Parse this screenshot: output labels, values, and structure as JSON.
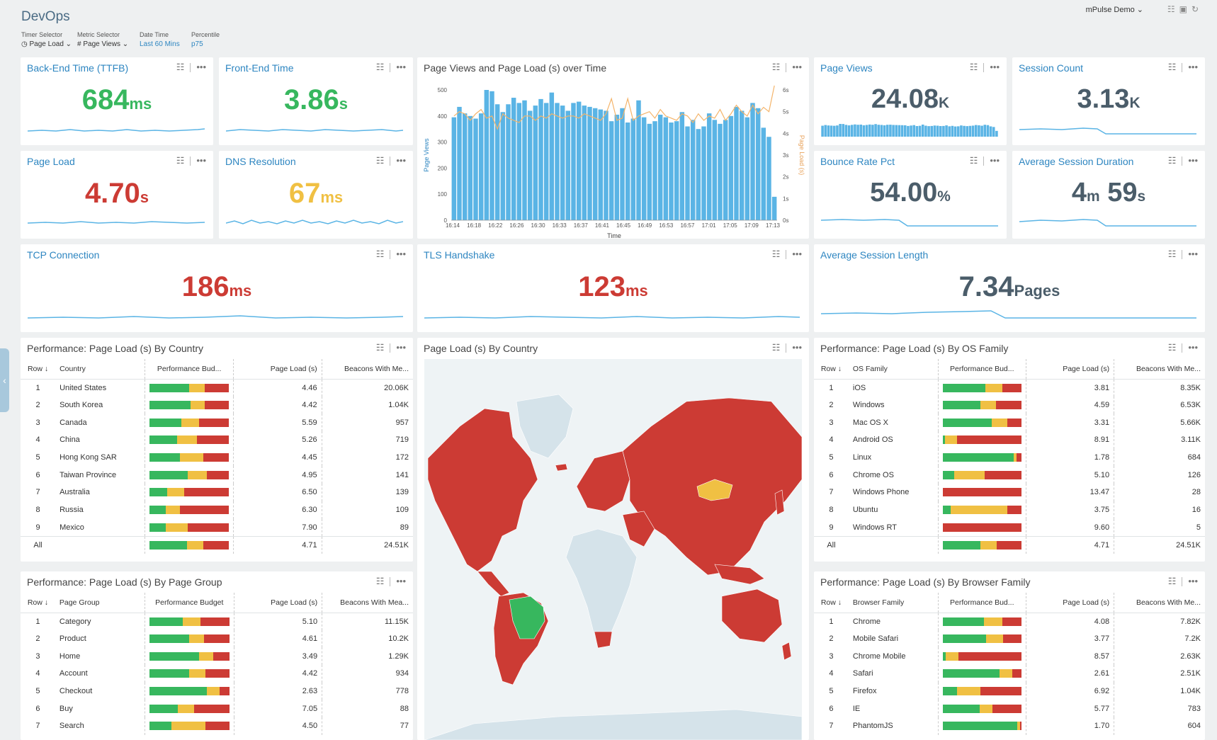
{
  "header": {
    "title": "DevOps",
    "user": "mPulse Demo",
    "filters": [
      {
        "label": "Timer Selector",
        "value": "◷ Page Load ⌄"
      },
      {
        "label": "Metric Selector",
        "value": "# Page Views ⌄"
      },
      {
        "label": "Date Time",
        "value": "Last 60 Mins"
      },
      {
        "label": "Percentile",
        "value": "p75"
      }
    ]
  },
  "colors": {
    "good": "#37b75e",
    "warn": "#f0c043",
    "bad": "#cc3b34",
    "link": "#2e86c1",
    "bar": "#5ab4e5",
    "line": "#f4b46a"
  },
  "icons": {
    "tree": "tree-icon",
    "more": "more-options-icon",
    "save": "save-icon",
    "refresh": "refresh-icon",
    "collapse": "chevron-left-icon"
  },
  "kpis": {
    "ttfb": {
      "title": "Back-End Time (TTFB)",
      "value": "684",
      "unit": "ms"
    },
    "frontend": {
      "title": "Front-End Time",
      "value": "3.86",
      "unit": "s"
    },
    "pageviews": {
      "title": "Page Views",
      "value": "24.08",
      "unit": "K"
    },
    "sessions": {
      "title": "Session Count",
      "value": "3.13",
      "unit": "K"
    },
    "pageload": {
      "title": "Page Load",
      "value": "4.70",
      "unit": "s"
    },
    "dns": {
      "title": "DNS Resolution",
      "value": "67",
      "unit": "ms"
    },
    "bounce": {
      "title": "Bounce Rate Pct",
      "value": "54.00",
      "unit": "%"
    },
    "avgdur": {
      "title": "Average Session Duration",
      "v1": "4",
      "u1": "m",
      "v2": "59",
      "u2": "s"
    },
    "tcp": {
      "title": "TCP Connection",
      "value": "186",
      "unit": "ms"
    },
    "tls": {
      "title": "TLS Handshake",
      "value": "123",
      "unit": "ms"
    },
    "avglen": {
      "title": "Average Session Length",
      "value": "7.34",
      "unit": "Pages"
    }
  },
  "chart_data": {
    "type": "bar",
    "title": "Page Views and Page Load (s) over Time",
    "xlabel": "Time",
    "ylabel": "Page Views",
    "y2label": "Page Load (s)",
    "ylim": [
      0,
      500
    ],
    "y2lim": [
      0,
      6
    ],
    "yticks": [
      0,
      100,
      200,
      300,
      400,
      500
    ],
    "y2ticks": [
      "0s",
      "1s",
      "2s",
      "3s",
      "4s",
      "5s",
      "6s"
    ],
    "xticks": [
      "16:14",
      "16:18",
      "16:22",
      "16:26",
      "16:30",
      "16:33",
      "16:37",
      "16:41",
      "16:45",
      "16:49",
      "16:53",
      "16:57",
      "17:01",
      "17:05",
      "17:09",
      "17:13"
    ],
    "series": [
      {
        "name": "Page Views",
        "type": "bar",
        "values": [
          395,
          435,
          410,
          400,
          390,
          410,
          500,
          495,
          445,
          415,
          445,
          470,
          450,
          460,
          420,
          440,
          465,
          450,
          490,
          450,
          440,
          420,
          450,
          455,
          440,
          435,
          430,
          425,
          420,
          380,
          405,
          430,
          375,
          390,
          460,
          395,
          370,
          380,
          405,
          395,
          375,
          380,
          415,
          360,
          385,
          350,
          360,
          410,
          385,
          370,
          385,
          400,
          435,
          420,
          395,
          450,
          430,
          355,
          320,
          90
        ]
      },
      {
        "name": "Page Load (s)",
        "type": "line",
        "values": [
          4.8,
          5.0,
          4.9,
          4.6,
          4.9,
          5.1,
          4.7,
          4.8,
          4.2,
          4.9,
          4.7,
          4.6,
          4.5,
          4.8,
          4.8,
          4.6,
          4.8,
          4.7,
          4.9,
          4.8,
          4.7,
          4.8,
          4.8,
          4.7,
          4.9,
          4.8,
          4.7,
          4.6,
          4.9,
          5.6,
          4.6,
          4.7,
          5.6,
          4.6,
          4.8,
          4.9,
          5.0,
          4.7,
          5.1,
          4.8,
          4.7,
          4.6,
          4.9,
          4.8,
          4.5,
          4.9,
          4.6,
          4.8,
          4.7,
          5.1,
          4.6,
          4.9,
          5.3,
          5.0,
          4.8,
          5.3,
          4.9,
          5.2,
          5.0,
          6.2
        ]
      }
    ]
  },
  "map": {
    "title": "Page Load (s) By Country"
  },
  "country_table": {
    "title": "Performance: Page Load (s) By Country",
    "headers": [
      "Row ↓",
      "Country",
      "Performance Bud...",
      "Page Load (s)",
      "Beacons With Me..."
    ],
    "rows": [
      {
        "row": "1",
        "name": "United States",
        "b": [
          50,
          20,
          30
        ],
        "load": "4.46",
        "beacons": "20.06K"
      },
      {
        "row": "2",
        "name": "South Korea",
        "b": [
          52,
          18,
          30
        ],
        "load": "4.42",
        "beacons": "1.04K"
      },
      {
        "row": "3",
        "name": "Canada",
        "b": [
          40,
          22,
          38
        ],
        "load": "5.59",
        "beacons": "957"
      },
      {
        "row": "4",
        "name": "China",
        "b": [
          35,
          25,
          40
        ],
        "load": "5.26",
        "beacons": "719"
      },
      {
        "row": "5",
        "name": "Hong Kong SAR",
        "b": [
          38,
          30,
          32
        ],
        "load": "4.45",
        "beacons": "172"
      },
      {
        "row": "6",
        "name": "Taiwan Province",
        "b": [
          48,
          24,
          28
        ],
        "load": "4.95",
        "beacons": "141"
      },
      {
        "row": "7",
        "name": "Australia",
        "b": [
          22,
          22,
          56
        ],
        "load": "6.50",
        "beacons": "139"
      },
      {
        "row": "8",
        "name": "Russia",
        "b": [
          20,
          18,
          62
        ],
        "load": "6.30",
        "beacons": "109"
      },
      {
        "row": "9",
        "name": "Mexico",
        "b": [
          20,
          28,
          52
        ],
        "load": "7.90",
        "beacons": "89"
      }
    ],
    "all": {
      "row": "All",
      "name": "",
      "b": [
        47,
        21,
        32
      ],
      "load": "4.71",
      "beacons": "24.51K"
    }
  },
  "os_table": {
    "title": "Performance: Page Load (s) By OS Family",
    "headers": [
      "Row ↓",
      "OS Family",
      "Performance Bud...",
      "Page Load (s)",
      "Beacons With Me..."
    ],
    "rows": [
      {
        "row": "1",
        "name": "iOS",
        "b": [
          54,
          22,
          24
        ],
        "load": "3.81",
        "beacons": "8.35K"
      },
      {
        "row": "2",
        "name": "Windows",
        "b": [
          48,
          20,
          32
        ],
        "load": "4.59",
        "beacons": "6.53K"
      },
      {
        "row": "3",
        "name": "Mac OS X",
        "b": [
          62,
          20,
          18
        ],
        "load": "3.31",
        "beacons": "5.66K"
      },
      {
        "row": "4",
        "name": "Android OS",
        "b": [
          3,
          15,
          82
        ],
        "load": "8.91",
        "beacons": "3.11K"
      },
      {
        "row": "5",
        "name": "Linux",
        "b": [
          90,
          4,
          6
        ],
        "load": "1.78",
        "beacons": "684"
      },
      {
        "row": "6",
        "name": "Chrome OS",
        "b": [
          15,
          38,
          47
        ],
        "load": "5.10",
        "beacons": "126"
      },
      {
        "row": "7",
        "name": "Windows Phone",
        "b": [
          0,
          0,
          100
        ],
        "load": "13.47",
        "beacons": "28"
      },
      {
        "row": "8",
        "name": "Ubuntu",
        "b": [
          10,
          72,
          18
        ],
        "load": "3.75",
        "beacons": "16"
      },
      {
        "row": "9",
        "name": "Windows RT",
        "b": [
          0,
          0,
          100
        ],
        "load": "9.60",
        "beacons": "5"
      }
    ],
    "all": {
      "row": "All",
      "name": "",
      "b": [
        48,
        21,
        31
      ],
      "load": "4.71",
      "beacons": "24.51K"
    }
  },
  "pagegroup_table": {
    "title": "Performance: Page Load (s) By Page Group",
    "headers": [
      "Row ↓",
      "Page Group",
      "Performance Budget",
      "Page Load (s)",
      "Beacons With Mea..."
    ],
    "rows": [
      {
        "row": "1",
        "name": "Category",
        "b": [
          42,
          22,
          36
        ],
        "load": "5.10",
        "beacons": "11.15K"
      },
      {
        "row": "2",
        "name": "Product",
        "b": [
          50,
          18,
          32
        ],
        "load": "4.61",
        "beacons": "10.2K"
      },
      {
        "row": "3",
        "name": "Home",
        "b": [
          62,
          18,
          20
        ],
        "load": "3.49",
        "beacons": "1.29K"
      },
      {
        "row": "4",
        "name": "Account",
        "b": [
          50,
          20,
          30
        ],
        "load": "4.42",
        "beacons": "934"
      },
      {
        "row": "5",
        "name": "Checkout",
        "b": [
          72,
          16,
          12
        ],
        "load": "2.63",
        "beacons": "778"
      },
      {
        "row": "6",
        "name": "Buy",
        "b": [
          36,
          20,
          44
        ],
        "load": "7.05",
        "beacons": "88"
      },
      {
        "row": "7",
        "name": "Search",
        "b": [
          28,
          42,
          30
        ],
        "load": "4.50",
        "beacons": "77"
      }
    ]
  },
  "browser_table": {
    "title": "Performance: Page Load (s) By Browser Family",
    "headers": [
      "Row ↓",
      "Browser Family",
      "Performance Bud...",
      "Page Load (s)",
      "Beacons With Me..."
    ],
    "rows": [
      {
        "row": "1",
        "name": "Chrome",
        "b": [
          52,
          24,
          24
        ],
        "load": "4.08",
        "beacons": "7.82K"
      },
      {
        "row": "2",
        "name": "Mobile Safari",
        "b": [
          55,
          22,
          23
        ],
        "load": "3.77",
        "beacons": "7.2K"
      },
      {
        "row": "3",
        "name": "Chrome Mobile",
        "b": [
          4,
          16,
          80
        ],
        "load": "8.57",
        "beacons": "2.63K"
      },
      {
        "row": "4",
        "name": "Safari",
        "b": [
          72,
          16,
          12
        ],
        "load": "2.61",
        "beacons": "2.51K"
      },
      {
        "row": "5",
        "name": "Firefox",
        "b": [
          18,
          30,
          52
        ],
        "load": "6.92",
        "beacons": "1.04K"
      },
      {
        "row": "6",
        "name": "IE",
        "b": [
          47,
          16,
          37
        ],
        "load": "5.77",
        "beacons": "783"
      },
      {
        "row": "7",
        "name": "PhantomJS",
        "b": [
          95,
          3,
          2
        ],
        "load": "1.70",
        "beacons": "604"
      }
    ]
  }
}
